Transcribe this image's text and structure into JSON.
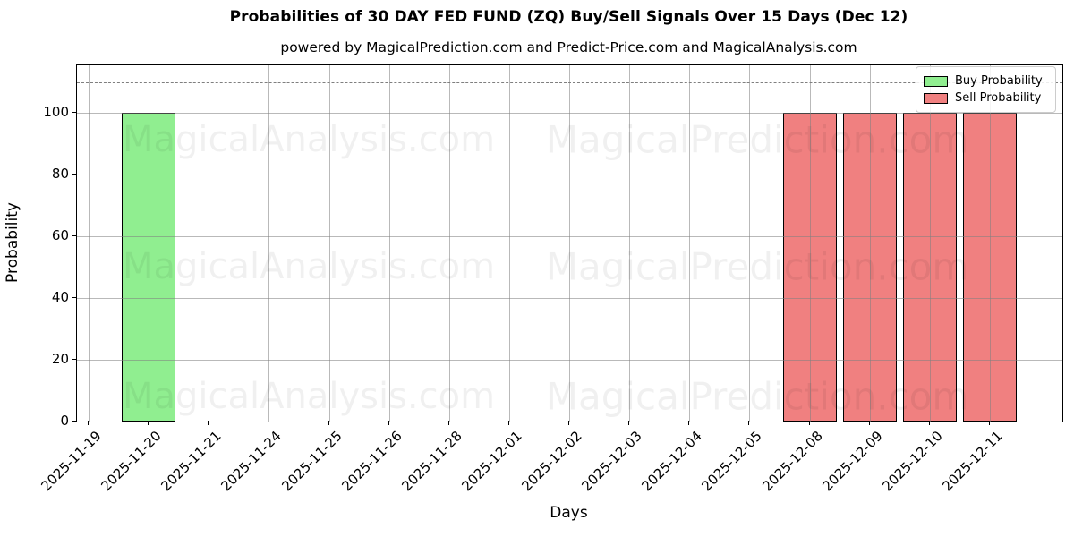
{
  "figure": {
    "title": "Probabilities of 30 DAY FED FUND (ZQ) Buy/Sell Signals Over 15 Days (Dec 12)",
    "subtitle": "powered by MagicalPrediction.com and Predict-Price.com and MagicalAnalysis.com"
  },
  "axes": {
    "xlabel": "Days",
    "ylabel": "Probability",
    "yticks": [
      0,
      20,
      40,
      60,
      80,
      100
    ]
  },
  "legend": {
    "position": "upper right",
    "entries": [
      {
        "label": "Buy Probability",
        "color": "#90EE90"
      },
      {
        "label": "Sell Probability",
        "color": "#F08080"
      }
    ]
  },
  "watermarks": {
    "left_text": "MagicalAnalysis.com",
    "right_text": "MagicalPrediction.com"
  },
  "colors": {
    "buy": "#90EE90",
    "sell": "#F08080",
    "bar_edge": "#000000",
    "grid": "#808080",
    "threshold_dashed": "#7f7f7f"
  },
  "chart_data": {
    "type": "bar",
    "title": "Probabilities of 30 DAY FED FUND (ZQ) Buy/Sell Signals Over 15 Days (Dec 12)",
    "xlabel": "Days",
    "ylabel": "Probability",
    "categories": [
      "2025-11-19",
      "2025-11-20",
      "2025-11-21",
      "2025-11-24",
      "2025-11-25",
      "2025-11-26",
      "2025-11-28",
      "2025-12-01",
      "2025-12-02",
      "2025-12-03",
      "2025-12-04",
      "2025-12-05",
      "2025-12-08",
      "2025-12-09",
      "2025-12-10",
      "2025-12-11"
    ],
    "series": [
      {
        "name": "Buy Probability",
        "color": "#90EE90",
        "values": [
          0,
          100,
          0,
          0,
          0,
          0,
          0,
          0,
          0,
          0,
          0,
          0,
          0,
          0,
          0,
          0
        ]
      },
      {
        "name": "Sell Probability",
        "color": "#F08080",
        "values": [
          0,
          0,
          0,
          0,
          0,
          0,
          0,
          0,
          0,
          0,
          0,
          0,
          100,
          100,
          100,
          100
        ]
      }
    ],
    "ylim": [
      0,
      115.5
    ],
    "yticks": [
      0,
      20,
      40,
      60,
      80,
      100
    ],
    "dashed_line_y": 110,
    "grid": true,
    "legend_position": "upper right"
  }
}
